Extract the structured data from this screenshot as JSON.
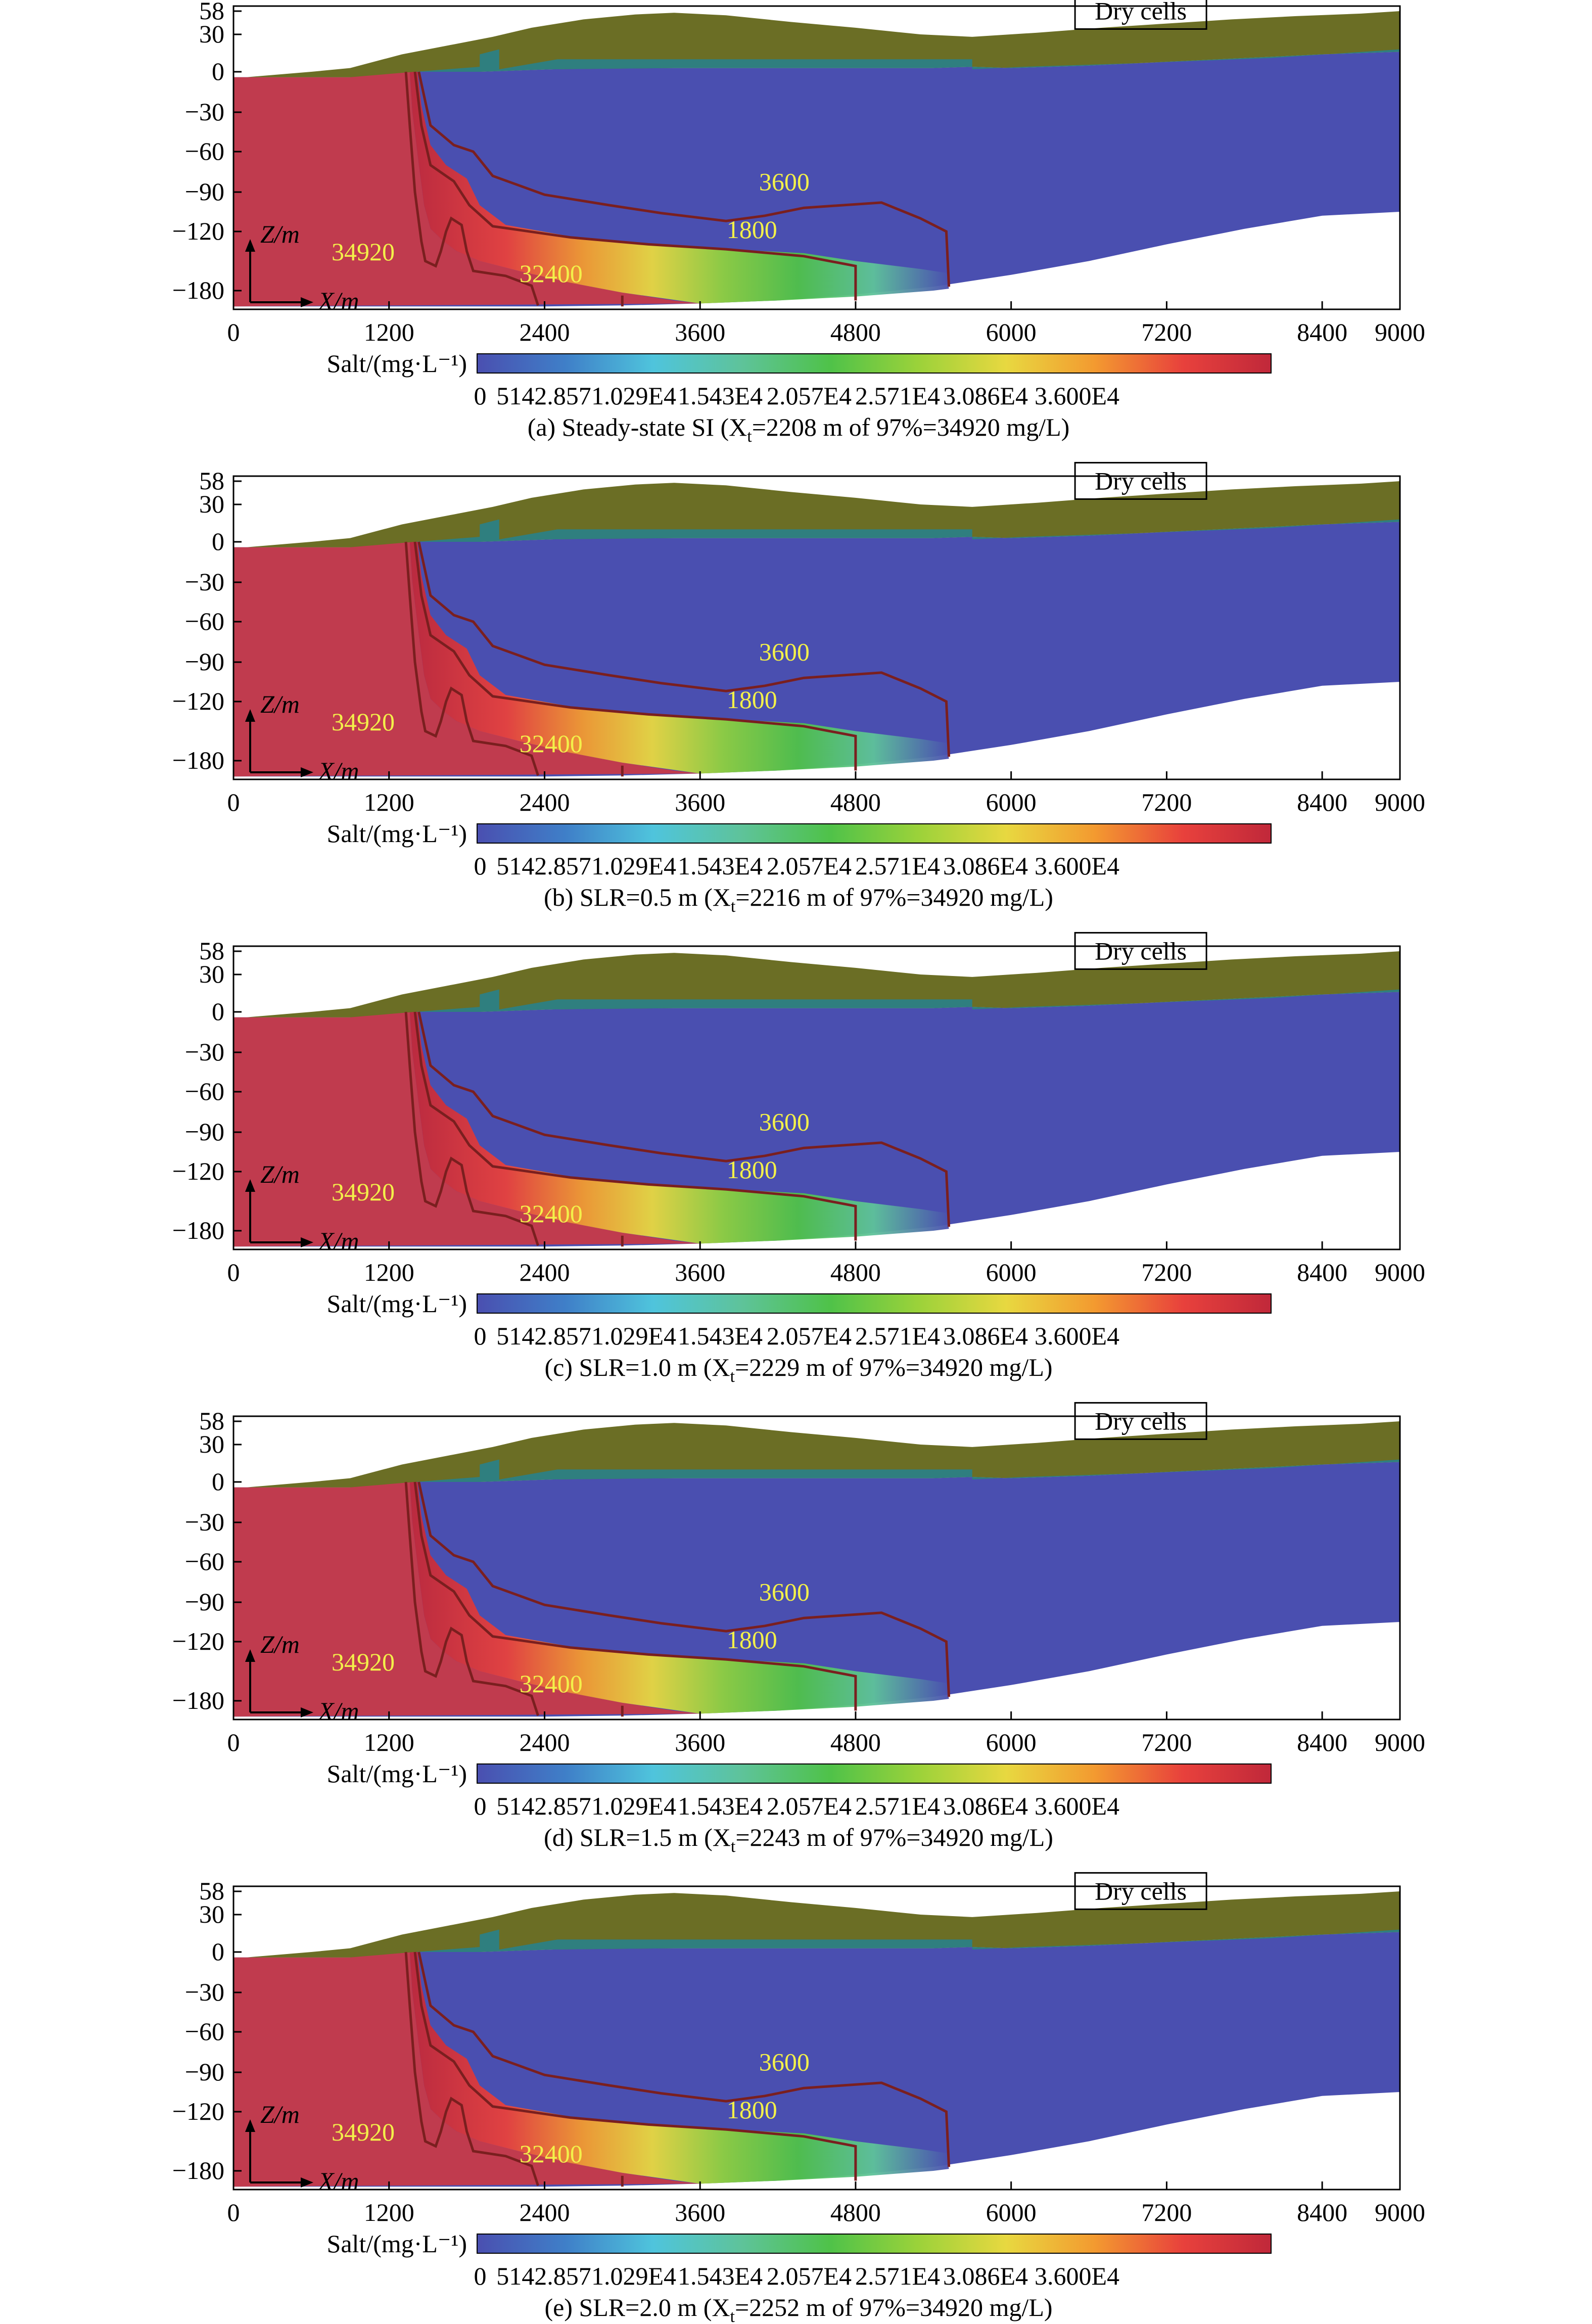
{
  "figure": {
    "colorbar": {
      "label": "Salt/(mg·L⁻¹)",
      "tick_labels": [
        "0",
        "5142.857",
        "1.029E4",
        "1.543E4",
        "2.057E4",
        "2.571E4",
        "3.086E4",
        "3.600E4"
      ],
      "colors": [
        "#4a4fb0",
        "#3f7fc8",
        "#4fc4dc",
        "#5ec39a",
        "#4fc249",
        "#9bd23a",
        "#e8d840",
        "#f39a30",
        "#e8413c",
        "#c0283a"
      ]
    },
    "colors": {
      "seawater": "#c03b4e",
      "freshwater": "#4a4fb0",
      "dry_cells": "#6b6e25",
      "dry_cells_teal": "#2f7f7f",
      "contour": "#7a1f1f",
      "contour_label": "#f3f04a"
    }
  },
  "chart_data": [
    {
      "type": "heatmap",
      "caption": "(a) Steady-state SI (X",
      "caption_sub": "t",
      "caption_tail": "=2208 m of 97%=34920 mg/L)",
      "toe_length_m": 2208,
      "x_ticks": [
        "0",
        "1200",
        "2400",
        "3600",
        "4800",
        "6000",
        "7200",
        "8400",
        "9000"
      ],
      "y_ticks": [
        "58",
        "30",
        "0",
        "−30",
        "−60",
        "−90",
        "−120",
        "−180"
      ],
      "axis_labels": {
        "x": "X/m",
        "z": "Z/m"
      },
      "xlim": [
        0,
        9000
      ],
      "ylim": [
        -180,
        58
      ],
      "dry_cells_label": "Dry cells",
      "contour_labels": [
        {
          "text": "34920",
          "x": 1000,
          "z": -140
        },
        {
          "text": "32400",
          "x": 2450,
          "z": -162
        },
        {
          "text": "1800",
          "x": 4000,
          "z": -118
        },
        {
          "text": "3600",
          "x": 4250,
          "z": -82
        }
      ]
    },
    {
      "type": "heatmap",
      "caption": "(b) SLR=0.5 m (X",
      "caption_sub": "t",
      "caption_tail": "=2216 m of 97%=34920 mg/L)",
      "toe_length_m": 2216,
      "x_ticks": [
        "0",
        "1200",
        "2400",
        "3600",
        "4800",
        "6000",
        "7200",
        "8400",
        "9000"
      ],
      "y_ticks": [
        "58",
        "30",
        "0",
        "−30",
        "−60",
        "−90",
        "−120",
        "−180"
      ],
      "axis_labels": {
        "x": "X/m",
        "z": "Z/m"
      },
      "xlim": [
        0,
        9000
      ],
      "ylim": [
        -180,
        58
      ],
      "dry_cells_label": "Dry cells",
      "contour_labels": [
        {
          "text": "34920",
          "x": 1000,
          "z": -140
        },
        {
          "text": "32400",
          "x": 2450,
          "z": -162
        },
        {
          "text": "1800",
          "x": 4000,
          "z": -118
        },
        {
          "text": "3600",
          "x": 4250,
          "z": -82
        }
      ]
    },
    {
      "type": "heatmap",
      "caption": "(c) SLR=1.0 m (X",
      "caption_sub": "t",
      "caption_tail": "=2229 m of 97%=34920 mg/L)",
      "toe_length_m": 2229,
      "x_ticks": [
        "0",
        "1200",
        "2400",
        "3600",
        "4800",
        "6000",
        "7200",
        "8400",
        "9000"
      ],
      "y_ticks": [
        "58",
        "30",
        "0",
        "−30",
        "−60",
        "−90",
        "−120",
        "−180"
      ],
      "axis_labels": {
        "x": "X/m",
        "z": "Z/m"
      },
      "xlim": [
        0,
        9000
      ],
      "ylim": [
        -180,
        58
      ],
      "dry_cells_label": "Dry cells",
      "contour_labels": [
        {
          "text": "34920",
          "x": 1000,
          "z": -140
        },
        {
          "text": "32400",
          "x": 2450,
          "z": -162
        },
        {
          "text": "1800",
          "x": 4000,
          "z": -118
        },
        {
          "text": "3600",
          "x": 4250,
          "z": -82
        }
      ]
    },
    {
      "type": "heatmap",
      "caption": "(d) SLR=1.5 m (X",
      "caption_sub": "t",
      "caption_tail": "=2243 m of 97%=34920 mg/L)",
      "toe_length_m": 2243,
      "x_ticks": [
        "0",
        "1200",
        "2400",
        "3600",
        "4800",
        "6000",
        "7200",
        "8400",
        "9000"
      ],
      "y_ticks": [
        "58",
        "30",
        "0",
        "−30",
        "−60",
        "−90",
        "−120",
        "−180"
      ],
      "axis_labels": {
        "x": "X/m",
        "z": "Z/m"
      },
      "xlim": [
        0,
        9000
      ],
      "ylim": [
        -180,
        58
      ],
      "dry_cells_label": "Dry cells",
      "contour_labels": [
        {
          "text": "34920",
          "x": 1000,
          "z": -140
        },
        {
          "text": "32400",
          "x": 2450,
          "z": -162
        },
        {
          "text": "1800",
          "x": 4000,
          "z": -118
        },
        {
          "text": "3600",
          "x": 4250,
          "z": -82
        }
      ]
    },
    {
      "type": "heatmap",
      "caption": "(e) SLR=2.0 m (X",
      "caption_sub": "t",
      "caption_tail": "=2252 m of 97%=34920 mg/L)",
      "toe_length_m": 2252,
      "x_ticks": [
        "0",
        "1200",
        "2400",
        "3600",
        "4800",
        "6000",
        "7200",
        "8400",
        "9000"
      ],
      "y_ticks": [
        "58",
        "30",
        "0",
        "−30",
        "−60",
        "−90",
        "−120",
        "−180"
      ],
      "axis_labels": {
        "x": "X/m",
        "z": "Z/m"
      },
      "xlim": [
        0,
        9000
      ],
      "ylim": [
        -180,
        58
      ],
      "dry_cells_label": "Dry cells",
      "contour_labels": [
        {
          "text": "34920",
          "x": 1000,
          "z": -140
        },
        {
          "text": "32400",
          "x": 2450,
          "z": -162
        },
        {
          "text": "1800",
          "x": 4000,
          "z": -118
        },
        {
          "text": "3600",
          "x": 4250,
          "z": -82
        }
      ]
    }
  ]
}
